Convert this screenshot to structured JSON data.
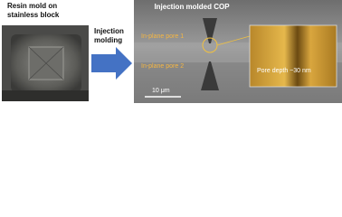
{
  "left_panel": {
    "caption": [
      "Resin mold on",
      "stainless block"
    ]
  },
  "arrow": {
    "label": [
      "Injection",
      "molding"
    ]
  },
  "sem_image": {
    "title": "Injection molded COP",
    "pore_labels": [
      "In-plane pore 1",
      "In-plane pore 2"
    ],
    "scale_bar": "10 μm"
  },
  "inset": {
    "label": "Pore depth ~30 nm"
  }
}
